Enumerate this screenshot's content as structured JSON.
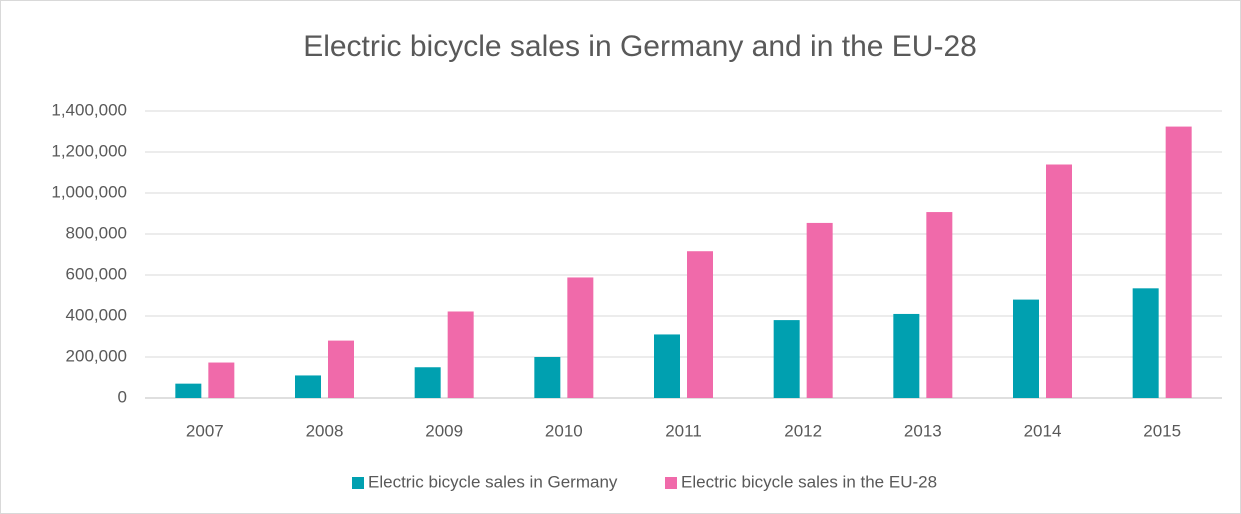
{
  "chart_data": {
    "type": "bar",
    "title": "Electric bicycle sales in Germany and in the EU-28",
    "categories": [
      "2007",
      "2008",
      "2009",
      "2010",
      "2011",
      "2012",
      "2013",
      "2014",
      "2015"
    ],
    "series": [
      {
        "name": "Electric bicycle sales in Germany",
        "color": "#00a0b0",
        "values": [
          70000,
          110000,
          150000,
          200000,
          310000,
          380000,
          410000,
          480000,
          535000
        ]
      },
      {
        "name": "Electric bicycle sales in the EU-28",
        "color": "#f06aaa",
        "values": [
          173000,
          280000,
          422000,
          588000,
          716000,
          854000,
          907000,
          1139000,
          1324000
        ]
      }
    ],
    "ylim": [
      0,
      1400000
    ],
    "yticks": [
      0,
      {
        "value": 200000,
        "label": "200,000"
      },
      {
        "value": 400000,
        "label": "400,000"
      },
      {
        "value": 600000,
        "label": "600,000"
      },
      {
        "value": 800000,
        "label": "800,000"
      },
      {
        "value": 1000000,
        "label": "1,000,000"
      },
      {
        "value": 1200000,
        "label": "1,200,000"
      },
      {
        "value": 1400000,
        "label": "1,400,000"
      }
    ],
    "grid": true,
    "legend": "bottom"
  }
}
